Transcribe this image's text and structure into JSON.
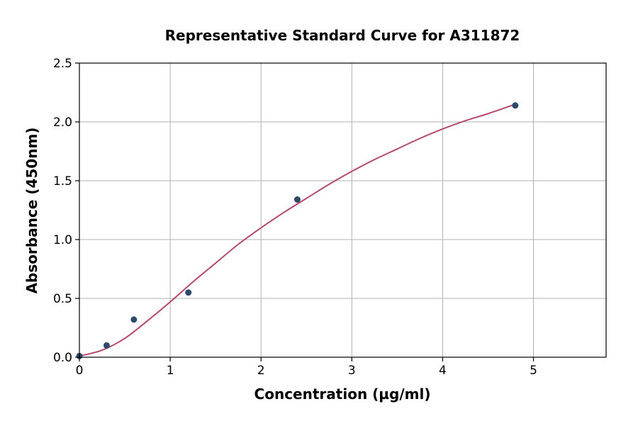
{
  "chart_data": {
    "type": "scatter",
    "title": "Representative Standard Curve for A311872",
    "xlabel": "Concentration (µg/ml)",
    "ylabel": "Absorbance (450nm)",
    "xlim": [
      0,
      5.8
    ],
    "ylim": [
      0,
      2.5
    ],
    "x_ticks": [
      0,
      1,
      2,
      3,
      4,
      5
    ],
    "x_tick_labels": [
      "0",
      "1",
      "2",
      "3",
      "4",
      "5"
    ],
    "y_ticks": [
      0,
      0.5,
      1.0,
      1.5,
      2.0,
      2.5
    ],
    "y_tick_labels": [
      "0.0",
      "0.5",
      "1.0",
      "1.5",
      "2.0",
      "2.5"
    ],
    "grid": true,
    "points": {
      "x": [
        0,
        0.3,
        0.6,
        1.2,
        2.4,
        4.8
      ],
      "y": [
        0.01,
        0.1,
        0.32,
        0.55,
        1.34,
        2.14
      ]
    },
    "fit_curve": {
      "x": [
        0,
        0.25,
        0.5,
        0.75,
        1.0,
        1.25,
        1.5,
        1.75,
        2.0,
        2.25,
        2.5,
        2.75,
        3.0,
        3.25,
        3.5,
        3.75,
        4.0,
        4.25,
        4.5,
        4.8
      ],
      "y": [
        0.01,
        0.06,
        0.16,
        0.31,
        0.47,
        0.64,
        0.8,
        0.96,
        1.1,
        1.23,
        1.35,
        1.47,
        1.58,
        1.68,
        1.77,
        1.86,
        1.94,
        2.01,
        2.07,
        2.15
      ]
    },
    "colors": {
      "points": "#2e4a6b",
      "curve": "#b5496b"
    }
  }
}
